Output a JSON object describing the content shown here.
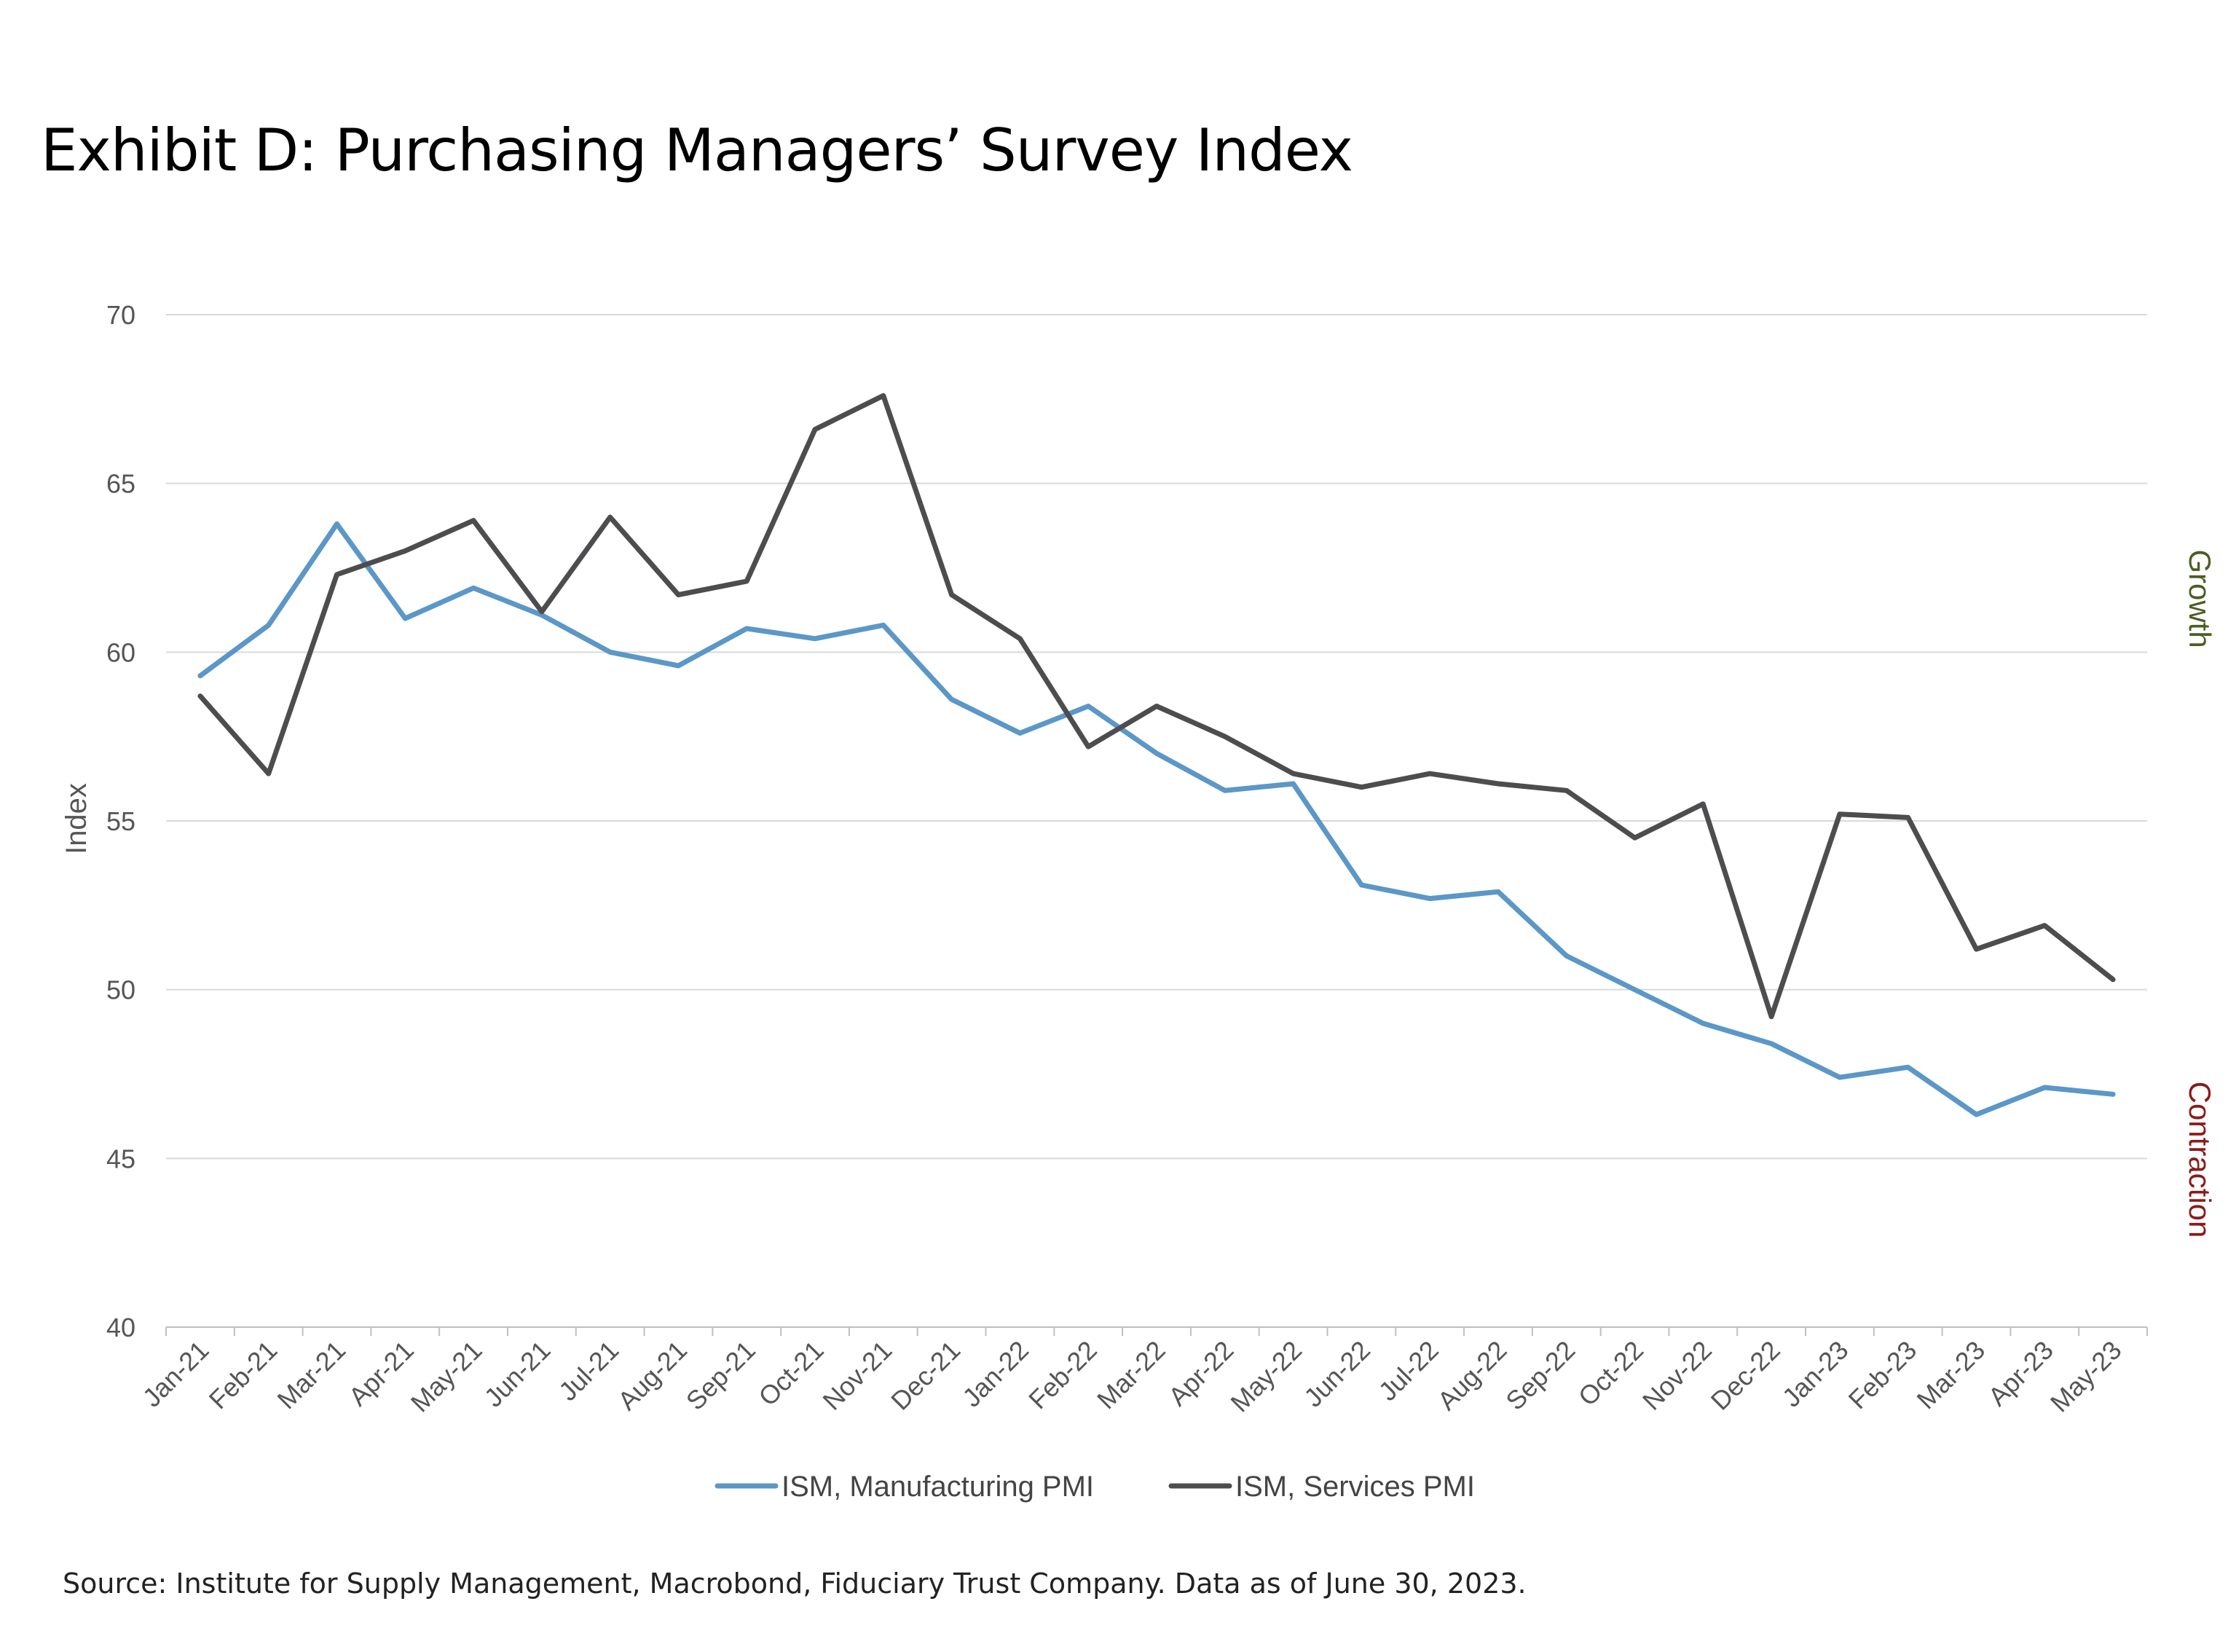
{
  "title": "Exhibit D: Purchasing Managers’ Survey Index",
  "source": "Source: Institute for Supply Management, Macrobond, Fiduciary Trust Company. Data as of June 30, 2023.",
  "zones": {
    "growth": {
      "label": "Growth",
      "color": "#4a5e23"
    },
    "contraction": {
      "label": "Contraction",
      "color": "#8b1a1a"
    }
  },
  "chart_data": {
    "type": "line",
    "ylabel": "Index",
    "xlabel": "",
    "ylim": [
      40,
      70
    ],
    "yticks": [
      40,
      45,
      50,
      55,
      60,
      65,
      70
    ],
    "grid": true,
    "legend_position": "bottom",
    "categories": [
      "Jan-21",
      "Feb-21",
      "Mar-21",
      "Apr-21",
      "May-21",
      "Jun-21",
      "Jul-21",
      "Aug-21",
      "Sep-21",
      "Oct-21",
      "Nov-21",
      "Dec-21",
      "Jan-22",
      "Feb-22",
      "Mar-22",
      "Apr-22",
      "May-22",
      "Jun-22",
      "Jul-22",
      "Aug-22",
      "Sep-22",
      "Oct-22",
      "Nov-22",
      "Dec-22",
      "Jan-23",
      "Feb-23",
      "Mar-23",
      "Apr-23",
      "May-23"
    ],
    "series": [
      {
        "name": "ISM, Manufacturing PMI",
        "color": "#5b97c7",
        "values": [
          59.3,
          60.8,
          63.8,
          61.0,
          61.9,
          61.1,
          60.0,
          59.6,
          60.7,
          60.4,
          60.8,
          58.6,
          57.6,
          58.4,
          57.0,
          55.9,
          56.1,
          53.1,
          52.7,
          52.9,
          51.0,
          50.0,
          49.0,
          48.4,
          47.4,
          47.7,
          46.3,
          47.1,
          46.9
        ]
      },
      {
        "name": "ISM, Services PMI",
        "color": "#4d4d4f",
        "values": [
          58.7,
          56.4,
          62.3,
          63.0,
          63.9,
          61.2,
          64.0,
          61.7,
          62.1,
          66.6,
          67.6,
          61.7,
          60.4,
          57.2,
          58.4,
          57.5,
          56.4,
          56.0,
          56.4,
          56.1,
          55.9,
          54.5,
          55.5,
          49.2,
          55.2,
          55.1,
          51.2,
          51.9,
          50.3
        ]
      }
    ]
  }
}
